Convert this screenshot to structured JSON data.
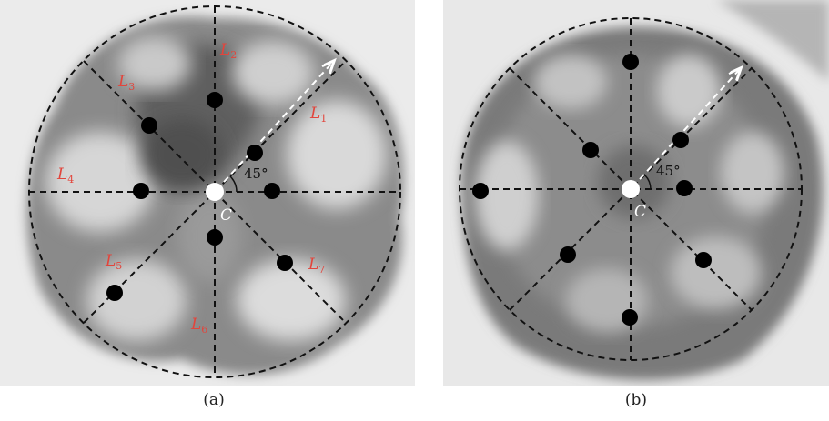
{
  "figure": {
    "panel_a": {
      "caption": "(a)",
      "line_labels": [
        {
          "letter": "L",
          "sub": "1"
        },
        {
          "letter": "L",
          "sub": "2"
        },
        {
          "letter": "L",
          "sub": "3"
        },
        {
          "letter": "L",
          "sub": "4"
        },
        {
          "letter": "L",
          "sub": "5"
        },
        {
          "letter": "L",
          "sub": "6"
        },
        {
          "letter": "L",
          "sub": "7"
        }
      ],
      "center_label": "C",
      "angle_label": "45°"
    },
    "panel_b": {
      "caption": "(b)",
      "center_label": "C",
      "angle_label": "45°"
    }
  },
  "colors": {
    "label_red": "#e2453c",
    "background": "#e9e9e9",
    "blob_dark": "#6a6a6a",
    "dashed_lines": "#111111",
    "arrow": "#ffffff"
  }
}
